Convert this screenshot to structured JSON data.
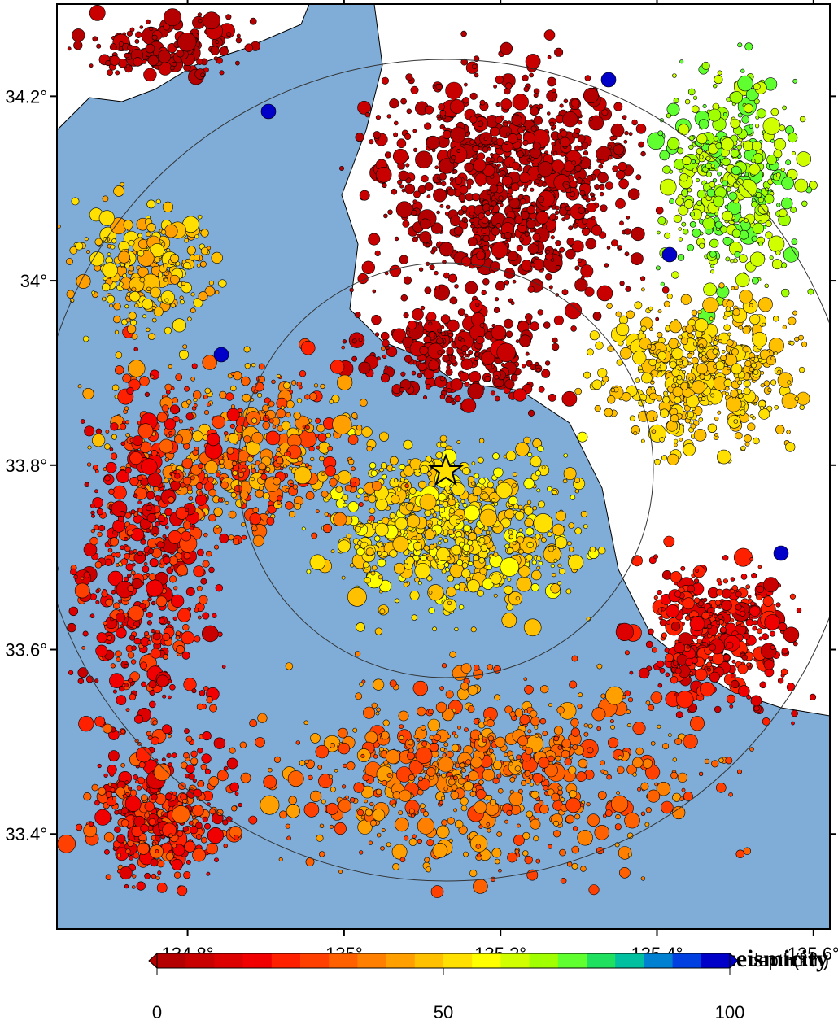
{
  "map": {
    "title": "seismicity",
    "lon_range": [
      134.633,
      135.621
    ],
    "lat_range": [
      33.297,
      34.3
    ],
    "lon_ticks": [
      {
        "value": 134.8,
        "label": "134.8°"
      },
      {
        "value": 135,
        "label": "135°"
      },
      {
        "value": 135.2,
        "label": "135.2°"
      },
      {
        "value": 135.4,
        "label": "135.4°"
      },
      {
        "value": 135.6,
        "label": "135.6°"
      }
    ],
    "lat_ticks": [
      {
        "value": 34.2,
        "label": "34.2°"
      },
      {
        "value": 34,
        "label": "34°"
      },
      {
        "value": 33.8,
        "label": "33.8°"
      },
      {
        "value": 33.6,
        "label": "33.6°"
      },
      {
        "value": 33.4,
        "label": "33.4°"
      }
    ],
    "colorbar": {
      "label": "depth(km)",
      "range": [
        0,
        100
      ],
      "ticks": [
        0,
        50,
        100
      ],
      "colors": [
        "#b40000",
        "#c80000",
        "#dc0000",
        "#f00000",
        "#ff2000",
        "#ff4000",
        "#ff6000",
        "#ff8000",
        "#ffa000",
        "#ffc000",
        "#ffe000",
        "#ffff00",
        "#d0ff00",
        "#a0ff00",
        "#60ff30",
        "#20e060",
        "#00c0a0",
        "#0080d0",
        "#0040e0",
        "#0000c8"
      ]
    }
  }
}
